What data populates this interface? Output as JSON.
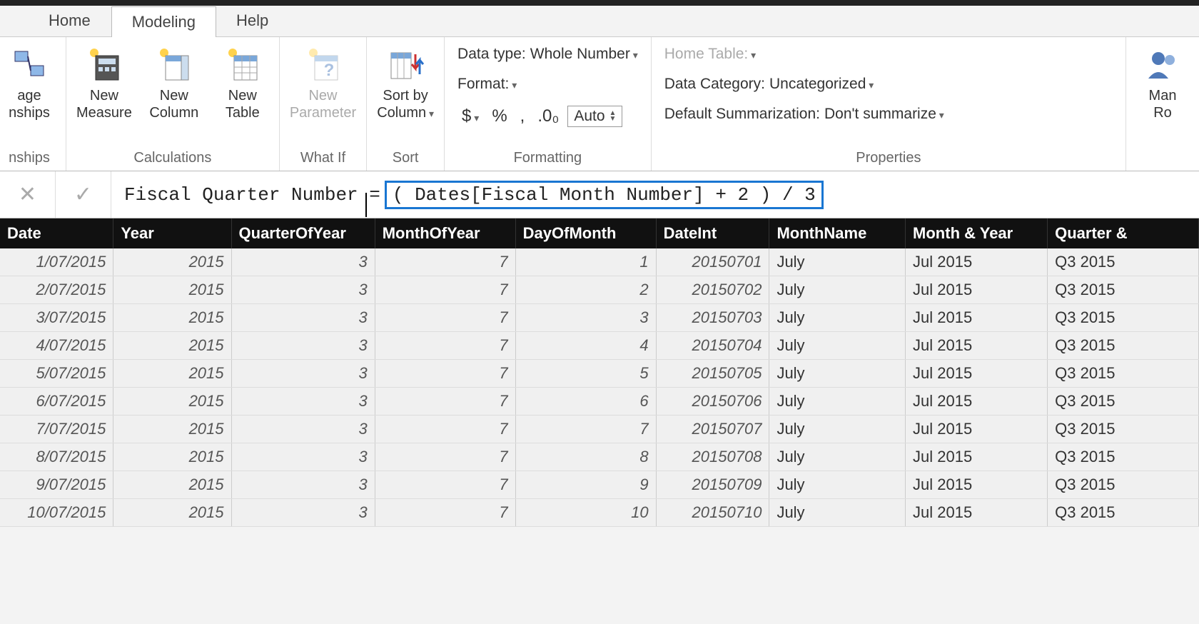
{
  "tabs": {
    "home": "Home",
    "modeling": "Modeling",
    "help": "Help",
    "active": "modeling"
  },
  "ribbon": {
    "relationships": {
      "label": "nships",
      "btn1_l1": "age",
      "btn1_l2": "nships"
    },
    "calculations": {
      "label": "Calculations",
      "newMeasure_l1": "New",
      "newMeasure_l2": "Measure",
      "newColumn_l1": "New",
      "newColumn_l2": "Column",
      "newTable_l1": "New",
      "newTable_l2": "Table"
    },
    "whatif": {
      "label": "What If",
      "newParam_l1": "New",
      "newParam_l2": "Parameter"
    },
    "sort": {
      "label": "Sort",
      "sortby_l1": "Sort by",
      "sortby_l2": "Column"
    },
    "formatting": {
      "label": "Formatting",
      "datatype_lbl": "Data type:",
      "datatype_val": "Whole Number",
      "format_lbl": "Format:",
      "auto": "Auto",
      "sym_dollar": "$",
      "sym_pct": "%",
      "sym_comma": ",",
      "sym_dec": ".0₀"
    },
    "properties": {
      "label": "Properties",
      "hometable_lbl": "Home Table:",
      "datacat_lbl": "Data Category:",
      "datacat_val": "Uncategorized",
      "defsum_lbl": "Default Summarization:",
      "defsum_val": "Don't summarize"
    },
    "security": {
      "roles_l1": "Man",
      "roles_l2": "Ro"
    }
  },
  "formula": {
    "prefix": "Fiscal Quarter Number = ",
    "highlighted": "( Dates[Fiscal Month Number] + 2 ) / 3"
  },
  "table": {
    "columns": [
      "Date",
      "Year",
      "QuarterOfYear",
      "MonthOfYear",
      "DayOfMonth",
      "DateInt",
      "MonthName",
      "Month & Year",
      "Quarter & "
    ],
    "colAlign": [
      "num",
      "num",
      "num",
      "num",
      "num",
      "num",
      "txt",
      "txt",
      "txt"
    ],
    "rows": [
      [
        "1/07/2015",
        "2015",
        "3",
        "7",
        "1",
        "20150701",
        "July",
        "Jul 2015",
        "Q3 2015"
      ],
      [
        "2/07/2015",
        "2015",
        "3",
        "7",
        "2",
        "20150702",
        "July",
        "Jul 2015",
        "Q3 2015"
      ],
      [
        "3/07/2015",
        "2015",
        "3",
        "7",
        "3",
        "20150703",
        "July",
        "Jul 2015",
        "Q3 2015"
      ],
      [
        "4/07/2015",
        "2015",
        "3",
        "7",
        "4",
        "20150704",
        "July",
        "Jul 2015",
        "Q3 2015"
      ],
      [
        "5/07/2015",
        "2015",
        "3",
        "7",
        "5",
        "20150705",
        "July",
        "Jul 2015",
        "Q3 2015"
      ],
      [
        "6/07/2015",
        "2015",
        "3",
        "7",
        "6",
        "20150706",
        "July",
        "Jul 2015",
        "Q3 2015"
      ],
      [
        "7/07/2015",
        "2015",
        "3",
        "7",
        "7",
        "20150707",
        "July",
        "Jul 2015",
        "Q3 2015"
      ],
      [
        "8/07/2015",
        "2015",
        "3",
        "7",
        "8",
        "20150708",
        "July",
        "Jul 2015",
        "Q3 2015"
      ],
      [
        "9/07/2015",
        "2015",
        "3",
        "7",
        "9",
        "20150709",
        "July",
        "Jul 2015",
        "Q3 2015"
      ],
      [
        "10/07/2015",
        "2015",
        "3",
        "7",
        "10",
        "20150710",
        "July",
        "Jul 2015",
        "Q3 2015"
      ]
    ]
  },
  "colors": {
    "highlight_border": "#1976d2",
    "header_bg": "#111111"
  }
}
